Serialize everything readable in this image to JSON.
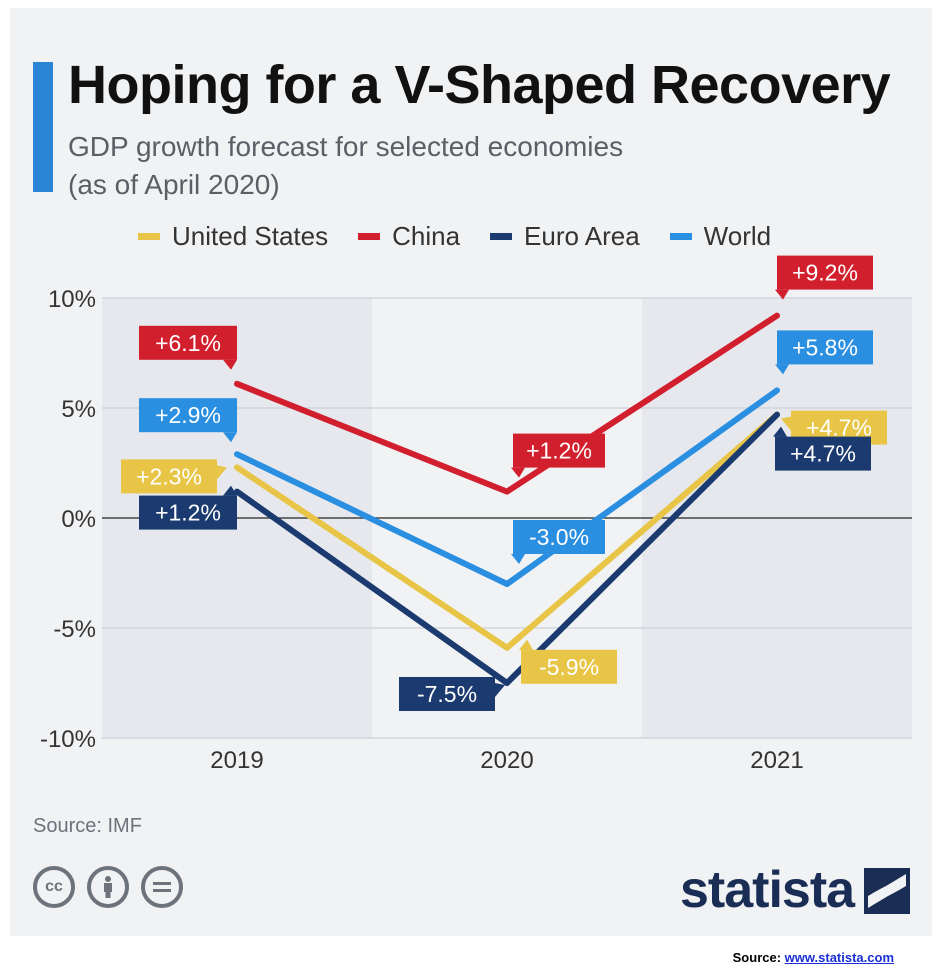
{
  "header": {
    "title": "Hoping for a V-Shaped Recovery",
    "subtitle_line1": "GDP growth forecast for selected economies",
    "subtitle_line2": "(as of April 2020)"
  },
  "footer": {
    "source": "Source: IMF",
    "brand": "statista",
    "source_label": "Source:",
    "source_link": "www.statista.com"
  },
  "icons": [
    "cc-icon",
    "attribution-icon",
    "no-derivatives-icon"
  ],
  "chart_data": {
    "type": "line",
    "title": "Hoping for a V-Shaped Recovery",
    "subtitle": "GDP growth forecast for selected economies (as of April 2020)",
    "xlabel": "",
    "ylabel": "",
    "categories": [
      "2019",
      "2020",
      "2021"
    ],
    "ylim": [
      -10,
      10
    ],
    "yticks": [
      -10,
      -5,
      0,
      5,
      10
    ],
    "ytick_labels": [
      "-10%",
      "-5%",
      "0%",
      "5%",
      "10%"
    ],
    "grid": true,
    "legend_position": "top",
    "series": [
      {
        "name": "United States",
        "color": "#e8c547",
        "values": [
          2.3,
          -5.9,
          4.7
        ],
        "labels": [
          "+2.3%",
          "-5.9%",
          "+4.7%"
        ],
        "label_color": "#ffffff"
      },
      {
        "name": "China",
        "color": "#d21f2e",
        "values": [
          6.1,
          1.2,
          9.2
        ],
        "labels": [
          "+6.1%",
          "+1.2%",
          "+9.2%"
        ],
        "label_color": "#ffffff"
      },
      {
        "name": "Euro Area",
        "color": "#1b3a6f",
        "values": [
          1.2,
          -7.5,
          4.7
        ],
        "labels": [
          "+1.2%",
          "-7.5%",
          "+4.7%"
        ],
        "label_color": "#ffffff"
      },
      {
        "name": "World",
        "color": "#2a8fe0",
        "values": [
          2.9,
          -3.0,
          5.8
        ],
        "labels": [
          "+2.9%",
          "-3.0%",
          "+5.8%"
        ],
        "label_color": "#ffffff"
      }
    ]
  }
}
